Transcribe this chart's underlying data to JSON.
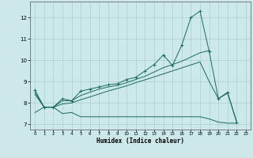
{
  "xlabel": "Humidex (Indice chaleur)",
  "background_color": "#cce8e8",
  "grid_color": "#aacfcf",
  "line_color": "#1a6b5a",
  "x_values": [
    0,
    1,
    2,
    3,
    4,
    5,
    6,
    7,
    8,
    9,
    10,
    11,
    12,
    13,
    14,
    15,
    16,
    17,
    18,
    19,
    20,
    21,
    22,
    23
  ],
  "line_main": [
    8.6,
    7.8,
    7.8,
    8.2,
    8.1,
    8.55,
    8.65,
    8.75,
    8.85,
    8.9,
    9.1,
    9.2,
    9.5,
    9.8,
    10.25,
    9.75,
    10.7,
    12.0,
    12.3,
    10.4,
    8.2,
    8.5,
    7.1,
    null
  ],
  "line_upper": [
    8.5,
    7.8,
    7.8,
    8.1,
    8.1,
    8.35,
    8.5,
    8.65,
    8.75,
    8.82,
    8.95,
    9.1,
    9.25,
    9.45,
    9.65,
    9.8,
    9.95,
    10.15,
    10.35,
    10.45,
    null,
    null,
    null,
    null
  ],
  "line_mid": [
    8.4,
    7.8,
    7.8,
    7.95,
    8.0,
    8.15,
    8.28,
    8.42,
    8.56,
    8.68,
    8.8,
    8.95,
    9.08,
    9.22,
    9.36,
    9.5,
    9.64,
    9.78,
    9.92,
    9.0,
    8.2,
    8.45,
    7.1,
    null
  ],
  "line_lower": [
    7.55,
    7.8,
    7.8,
    7.5,
    7.55,
    7.35,
    7.35,
    7.35,
    7.35,
    7.35,
    7.35,
    7.35,
    7.35,
    7.35,
    7.35,
    7.35,
    7.35,
    7.35,
    7.35,
    7.25,
    7.1,
    7.05,
    7.05,
    null
  ],
  "ylim": [
    6.75,
    12.75
  ],
  "xlim": [
    -0.5,
    23.5
  ],
  "yticks": [
    7,
    8,
    9,
    10,
    11,
    12
  ],
  "xticks": [
    0,
    1,
    2,
    3,
    4,
    5,
    6,
    7,
    8,
    9,
    10,
    11,
    12,
    13,
    14,
    15,
    16,
    17,
    18,
    19,
    20,
    21,
    22,
    23
  ]
}
